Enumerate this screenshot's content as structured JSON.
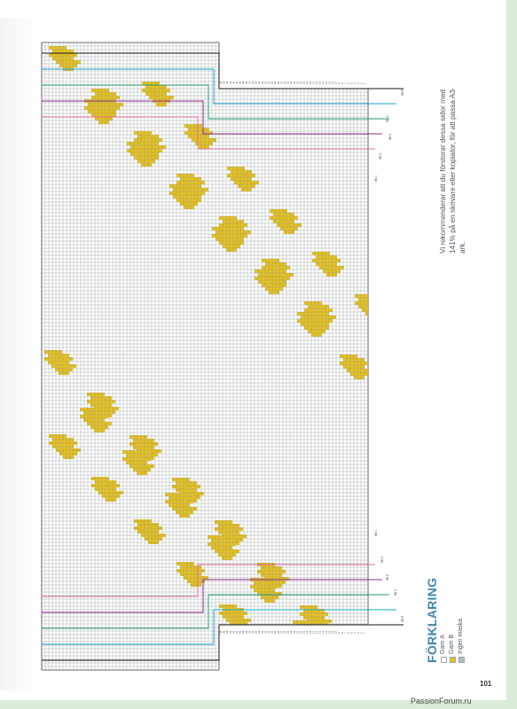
{
  "note": {
    "text": "Vi rekommenderar att du förstorar dessa sidor med 141% på en skrivare eller kopiator, för att passa A3-ark."
  },
  "legend": {
    "title": "FÖRKLARING",
    "items": [
      {
        "label": "Garn A",
        "color": "#ffffff"
      },
      {
        "label": "Garn B",
        "color": "#e6c21e"
      },
      {
        "label": "Ingen maska",
        "color": "#b9bdc2"
      }
    ]
  },
  "page_number": "101",
  "watermark": "PassionForum.ru",
  "size_labels": {
    "top": [
      "Stl 5",
      "Stl 4",
      "Stl 3",
      "Stl 2",
      "Stl 1"
    ],
    "bottom": [
      "Stl 1",
      "Stl 2",
      "Stl 3",
      "Stl 4",
      "Stl 5"
    ]
  },
  "size_colors": [
    "#111111",
    "#19a4d6",
    "#1e9a6e",
    "#8b2c8c",
    "#e0679a"
  ],
  "colors": {
    "yarn_b": "#e6c21e",
    "grid": "#8c9196",
    "background": "#ffffff",
    "accent": "#3f86b8"
  }
}
